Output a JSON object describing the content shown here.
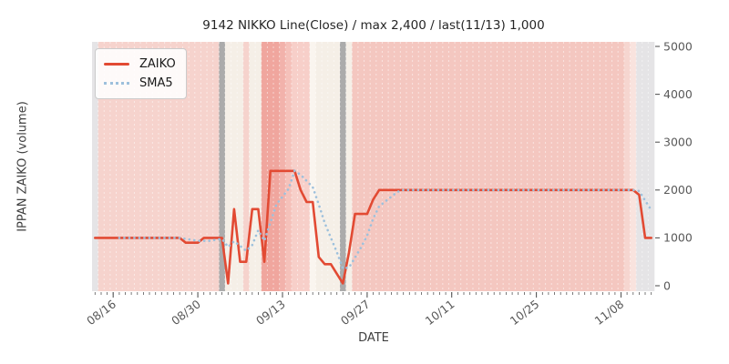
{
  "chart_data": {
    "type": "line",
    "title": "9142 NIKKO Line(Close) / max 2,400 / last(11/13) 1,000",
    "ylabel_left": "IPPAN ZAIKO (volume)",
    "xlabel": "DATE",
    "legend_position": "upper left",
    "grid": "white dashed vertical day separators on striped background",
    "y_ticks_right": [
      0,
      1000,
      2000,
      3000,
      4000,
      5000
    ],
    "ylim": [
      -114,
      5095
    ],
    "n_days": 93,
    "start_date": "08/13",
    "end_date": "11/13",
    "x_tick_labels": [
      "08/16",
      "08/30",
      "09/13",
      "09/27",
      "10/11",
      "10/25",
      "11/08"
    ],
    "x_tick_indices": [
      3,
      17,
      31,
      45,
      59,
      73,
      87
    ],
    "max_value": 2400,
    "last_value": 1000,
    "last_date": "11/13",
    "series": [
      {
        "name": "ZAIKO",
        "style": "solid",
        "color": "#e24a33",
        "values": [
          1000,
          1000,
          1000,
          1000,
          1000,
          1000,
          1000,
          1000,
          1000,
          1000,
          1000,
          1000,
          1000,
          1000,
          1000,
          900,
          900,
          900,
          1000,
          1000,
          1000,
          1000,
          50,
          1600,
          500,
          500,
          1600,
          1600,
          500,
          2400,
          2400,
          2400,
          2400,
          2400,
          2000,
          1750,
          1750,
          600,
          450,
          450,
          250,
          50,
          700,
          1500,
          1500,
          1500,
          1800,
          2000,
          2000,
          2000,
          2000,
          2000,
          2000,
          2000,
          2000,
          2000,
          2000,
          2000,
          2000,
          2000,
          2000,
          2000,
          2000,
          2000,
          2000,
          2000,
          2000,
          2000,
          2000,
          2000,
          2000,
          2000,
          2000,
          2000,
          2000,
          2000,
          2000,
          2000,
          2000,
          2000,
          2000,
          2000,
          2000,
          2000,
          2000,
          2000,
          2000,
          2000,
          2000,
          2000,
          1900,
          1000,
          1000
        ]
      },
      {
        "name": "SMA5",
        "style": "dotted",
        "color": "#9dc0dc",
        "derived": "5-day moving average of ZAIKO",
        "window": 5
      }
    ],
    "background": {
      "palette": {
        "E": "#e5e4e6",
        "A": "#f6d3cd",
        "G": "#ababab",
        "C": "#f5efe7",
        "c": "#faf5ef",
        "S": "#f0a69e",
        "M": "#f2b2ab",
        "m": "#f5c1ba",
        "P": "#f7cfc9",
        "R": "#f4c7c0",
        "r": "#f6d6d0",
        "q": "#f9e3de"
      },
      "day_colors": "EAAAAAAAAAAAAAAAAAAAAGCCCACCSSSMmPPPcCCCCGCRRRRRRRRRRRRRRRRRRRRRRRRRRRRRRRRRRRRRRRRRRRRRrqEE",
      "separator_color": "rgba(255,255,255,0.5)"
    },
    "axis": {
      "tick_color": "#595959",
      "tick_label_color": "#595959",
      "x_tick_label_rotation_deg": -37
    }
  },
  "legend": {
    "entries": [
      "ZAIKO",
      "SMA5"
    ]
  }
}
